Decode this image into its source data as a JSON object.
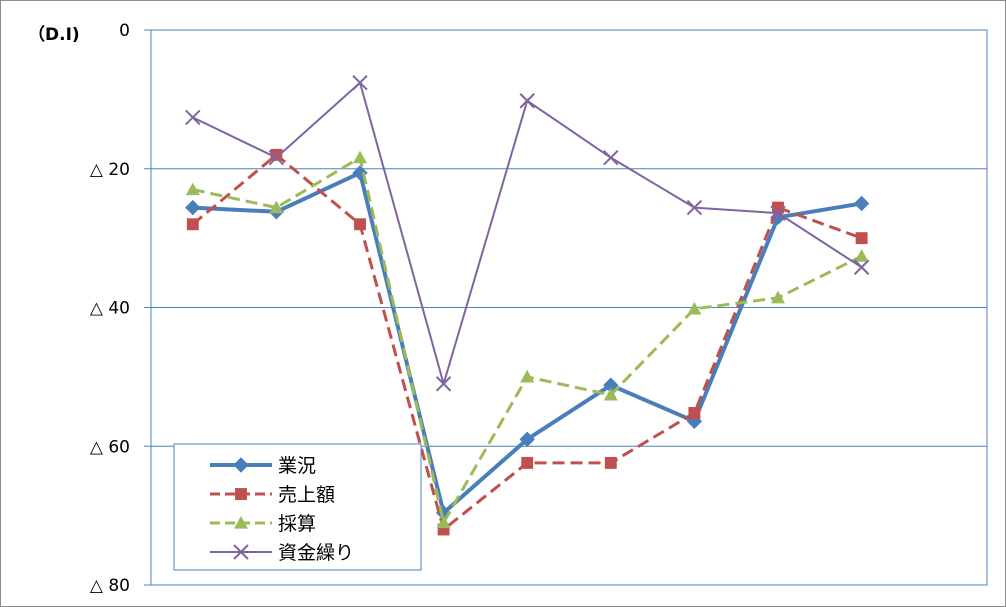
{
  "chart_data": {
    "type": "line",
    "unit_label": "（D.I)",
    "y_ticks": [
      {
        "value": 0,
        "label": "0"
      },
      {
        "value": -20,
        "label": "△ 20"
      },
      {
        "value": -40,
        "label": "△ 40"
      },
      {
        "value": -60,
        "label": "△ 60"
      },
      {
        "value": -80,
        "label": "△ 80"
      }
    ],
    "ylim": [
      -80,
      0
    ],
    "x_count": 10,
    "grid": "horizontal",
    "legend_position": "bottom-left",
    "series": [
      {
        "name": "業況",
        "color": "#4a7ebb",
        "dash": "solid",
        "marker": "diamond",
        "width": 4,
        "values": [
          -25.6,
          -26.2,
          -20.6,
          -69.6,
          -59.0,
          -51.2,
          -56.4,
          -27.0,
          -25.0
        ]
      },
      {
        "name": "売上額",
        "color": "#c0504d",
        "dash": "dashed",
        "marker": "square",
        "width": 3,
        "values": [
          -28.0,
          -18.0,
          -28.0,
          -72.0,
          -62.4,
          -62.4,
          -55.2,
          -25.6,
          -30.0
        ]
      },
      {
        "name": "採算",
        "color": "#9bbb59",
        "dash": "dashed",
        "marker": "triangle",
        "width": 3,
        "values": [
          -23.0,
          -25.6,
          -18.4,
          -71.0,
          -50.0,
          -52.6,
          -40.2,
          -38.6,
          -32.6
        ]
      },
      {
        "name": "資金繰り",
        "color": "#8064a2",
        "dash": "solid",
        "marker": "x",
        "width": 2,
        "values": [
          -12.6,
          -18.4,
          -7.6,
          -51.0,
          -10.2,
          -18.4,
          -25.6,
          -26.4,
          -34.2
        ]
      }
    ]
  }
}
